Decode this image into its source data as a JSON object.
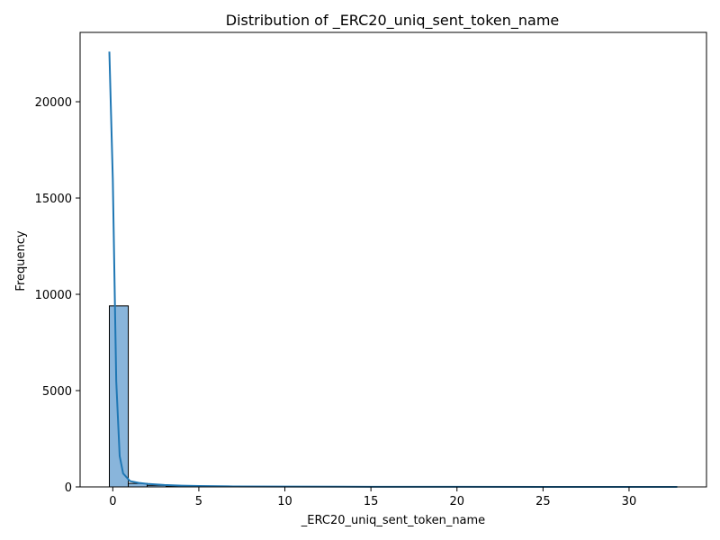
{
  "chart_data": {
    "type": "bar",
    "title": "Distribution of _ERC20_uniq_sent_token_name",
    "xlabel": "_ERC20_uniq_sent_token_name",
    "ylabel": "Frequency",
    "xlim": [
      -1.9,
      34.5
    ],
    "ylim": [
      0,
      23600
    ],
    "x_ticks": [
      0,
      5,
      10,
      15,
      20,
      25,
      30
    ],
    "y_ticks": [
      0,
      5000,
      10000,
      15000,
      20000
    ],
    "grid": false,
    "legend": "none",
    "bar_color": "#89b5db",
    "bar_edge_color": "#000000",
    "line_color": "#1f77b4",
    "bins": [
      {
        "x0": -0.2,
        "x1": 0.9,
        "count": 9400
      },
      {
        "x0": 0.9,
        "x1": 2.0,
        "count": 180
      },
      {
        "x0": 2.0,
        "x1": 3.1,
        "count": 80
      },
      {
        "x0": 3.1,
        "x1": 4.2,
        "count": 40
      },
      {
        "x0": 4.2,
        "x1": 5.3,
        "count": 25
      },
      {
        "x0": 5.3,
        "x1": 6.4,
        "count": 12
      },
      {
        "x0": 6.4,
        "x1": 7.5,
        "count": 8
      },
      {
        "x0": 7.5,
        "x1": 8.6,
        "count": 6
      },
      {
        "x0": 8.6,
        "x1": 9.7,
        "count": 4
      },
      {
        "x0": 9.7,
        "x1": 10.8,
        "count": 3
      },
      {
        "x0": 10.8,
        "x1": 11.9,
        "count": 2
      },
      {
        "x0": 11.9,
        "x1": 13.0,
        "count": 2
      },
      {
        "x0": 13.0,
        "x1": 14.1,
        "count": 1
      },
      {
        "x0": 14.1,
        "x1": 15.2,
        "count": 1
      },
      {
        "x0": 15.2,
        "x1": 16.3,
        "count": 1
      },
      {
        "x0": 16.3,
        "x1": 17.4,
        "count": 1
      },
      {
        "x0": 17.4,
        "x1": 18.5,
        "count": 1
      },
      {
        "x0": 18.5,
        "x1": 19.6,
        "count": 1
      },
      {
        "x0": 19.6,
        "x1": 20.7,
        "count": 1
      },
      {
        "x0": 20.7,
        "x1": 21.8,
        "count": 1
      },
      {
        "x0": 21.8,
        "x1": 22.9,
        "count": 1
      },
      {
        "x0": 22.9,
        "x1": 24.0,
        "count": 1
      },
      {
        "x0": 24.0,
        "x1": 25.1,
        "count": 1
      },
      {
        "x0": 25.1,
        "x1": 26.2,
        "count": 1
      },
      {
        "x0": 26.2,
        "x1": 27.3,
        "count": 1
      },
      {
        "x0": 27.3,
        "x1": 28.4,
        "count": 1
      },
      {
        "x0": 28.4,
        "x1": 29.5,
        "count": 1
      },
      {
        "x0": 29.5,
        "x1": 30.6,
        "count": 1
      },
      {
        "x0": 30.6,
        "x1": 31.7,
        "count": 1
      },
      {
        "x0": 31.7,
        "x1": 32.8,
        "count": 1
      }
    ],
    "kde": {
      "x": [
        -0.2,
        0.0,
        0.2,
        0.4,
        0.6,
        1.0,
        1.5,
        2.0,
        3.0,
        4.0,
        5.0,
        7.0,
        10.0,
        15.0,
        20.0,
        25.0,
        30.0,
        32.8
      ],
      "y": [
        22600,
        16000,
        5500,
        1600,
        700,
        300,
        210,
        160,
        100,
        65,
        45,
        25,
        15,
        8,
        5,
        3,
        2,
        1
      ]
    }
  }
}
